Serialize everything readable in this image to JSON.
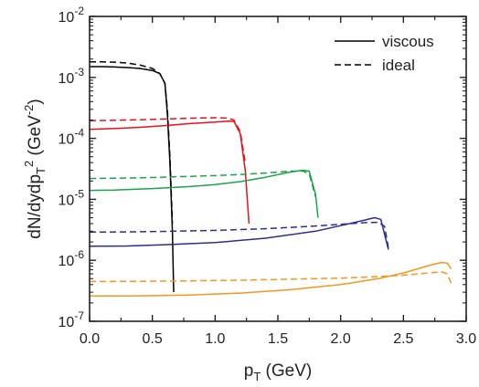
{
  "chart_data": {
    "type": "line",
    "xlabel": "p_T (GeV)",
    "ylabel": "dN/dydp_T^2 (GeV^-2)",
    "xlim": [
      0.0,
      3.0
    ],
    "ylim": [
      1e-07,
      0.01
    ],
    "yscale": "log",
    "grid": false,
    "legend_position": "top-right",
    "x_ticks": [
      "0.0",
      "0.5",
      "1.0",
      "1.5",
      "2.0",
      "2.5",
      "3.0"
    ],
    "y_ticks": [
      {
        "base": "10",
        "exp": "-7"
      },
      {
        "base": "10",
        "exp": "-6"
      },
      {
        "base": "10",
        "exp": "-5"
      },
      {
        "base": "10",
        "exp": "-4"
      },
      {
        "base": "10",
        "exp": "-3"
      },
      {
        "base": "10",
        "exp": "-2"
      }
    ],
    "legend": [
      {
        "label": "viscous",
        "style": "solid"
      },
      {
        "label": "ideal",
        "style": "dashed"
      }
    ],
    "series": [
      {
        "color": "#000000",
        "style": "solid",
        "x": [
          0.0,
          0.1,
          0.2,
          0.3,
          0.4,
          0.5,
          0.56,
          0.6,
          0.62,
          0.64,
          0.66,
          0.67
        ],
        "y": [
          0.0015,
          0.0015,
          0.00148,
          0.00145,
          0.0014,
          0.0013,
          0.00115,
          0.0008,
          0.00025,
          4e-05,
          3e-06,
          3e-07
        ]
      },
      {
        "color": "#000000",
        "style": "dashed",
        "x": [
          0.0,
          0.1,
          0.2,
          0.3,
          0.4,
          0.5,
          0.56,
          0.6,
          0.62,
          0.64,
          0.66
        ],
        "y": [
          0.0018,
          0.0018,
          0.00178,
          0.00172,
          0.0016,
          0.0014,
          0.00115,
          0.0008,
          0.0003,
          5e-05,
          4e-06
        ]
      },
      {
        "color": "#e8101c",
        "style": "solid",
        "x": [
          0.0,
          0.2,
          0.4,
          0.6,
          0.8,
          1.0,
          1.1,
          1.15,
          1.2,
          1.24,
          1.27
        ],
        "y": [
          0.00014,
          0.000145,
          0.000152,
          0.000162,
          0.000175,
          0.000185,
          0.000192,
          0.00019,
          0.00012,
          3e-05,
          4e-06
        ]
      },
      {
        "color": "#e8101c",
        "style": "dashed",
        "x": [
          0.0,
          0.2,
          0.4,
          0.6,
          0.8,
          1.0,
          1.1,
          1.15,
          1.2,
          1.24
        ],
        "y": [
          0.000195,
          0.000198,
          0.000202,
          0.000208,
          0.000214,
          0.000218,
          0.000215,
          0.0002,
          0.00013,
          4e-05
        ]
      },
      {
        "color": "#1aa34a",
        "style": "solid",
        "x": [
          0.0,
          0.2,
          0.5,
          0.8,
          1.0,
          1.2,
          1.4,
          1.6,
          1.7,
          1.75,
          1.8,
          1.82
        ],
        "y": [
          1.4e-05,
          1.42e-05,
          1.5e-05,
          1.62e-05,
          1.75e-05,
          1.95e-05,
          2.3e-05,
          2.8e-05,
          3e-05,
          2.9e-05,
          1.2e-05,
          5e-06
        ]
      },
      {
        "color": "#1aa34a",
        "style": "dashed",
        "x": [
          0.0,
          0.2,
          0.5,
          0.8,
          1.0,
          1.2,
          1.4,
          1.6,
          1.7,
          1.75,
          1.8
        ],
        "y": [
          2.2e-05,
          2.22e-05,
          2.28e-05,
          2.38e-05,
          2.45e-05,
          2.55e-05,
          2.7e-05,
          2.9e-05,
          2.9e-05,
          2.6e-05,
          1.1e-05
        ]
      },
      {
        "color": "#2b2d8f",
        "style": "solid",
        "x": [
          0.0,
          0.3,
          0.6,
          1.0,
          1.4,
          1.8,
          2.0,
          2.2,
          2.27,
          2.32,
          2.36,
          2.38
        ],
        "y": [
          1.7e-06,
          1.72e-06,
          1.8e-06,
          1.95e-06,
          2.3e-06,
          3e-06,
          3.7e-06,
          4.6e-06,
          5e-06,
          4.7e-06,
          2.2e-06,
          1.5e-06
        ]
      },
      {
        "color": "#2b2d8f",
        "style": "dashed",
        "x": [
          0.0,
          0.3,
          0.6,
          1.0,
          1.4,
          1.8,
          2.0,
          2.2,
          2.3,
          2.35,
          2.38
        ],
        "y": [
          2.9e-06,
          2.92e-06,
          2.98e-06,
          3.1e-06,
          3.3e-06,
          3.65e-06,
          3.9e-06,
          4.15e-06,
          4.2e-06,
          3.6e-06,
          1.6e-06
        ]
      },
      {
        "color": "#f5961e",
        "style": "solid",
        "x": [
          0.0,
          0.4,
          0.8,
          1.2,
          1.6,
          2.0,
          2.3,
          2.5,
          2.7,
          2.8,
          2.85,
          2.88
        ],
        "y": [
          2.6e-07,
          2.62e-07,
          2.7e-07,
          2.9e-07,
          3.3e-07,
          4e-07,
          5e-07,
          6.2e-07,
          8.2e-07,
          9.2e-07,
          9e-07,
          7.2e-07
        ]
      },
      {
        "color": "#f5961e",
        "style": "dashed",
        "x": [
          0.0,
          0.4,
          0.8,
          1.2,
          1.6,
          2.0,
          2.3,
          2.5,
          2.7,
          2.8,
          2.85,
          2.88
        ],
        "y": [
          4.5e-07,
          4.52e-07,
          4.6e-07,
          4.72e-07,
          4.9e-07,
          5.1e-07,
          5.4e-07,
          5.7e-07,
          6.2e-07,
          6.5e-07,
          6e-07,
          4.2e-07
        ]
      }
    ]
  }
}
